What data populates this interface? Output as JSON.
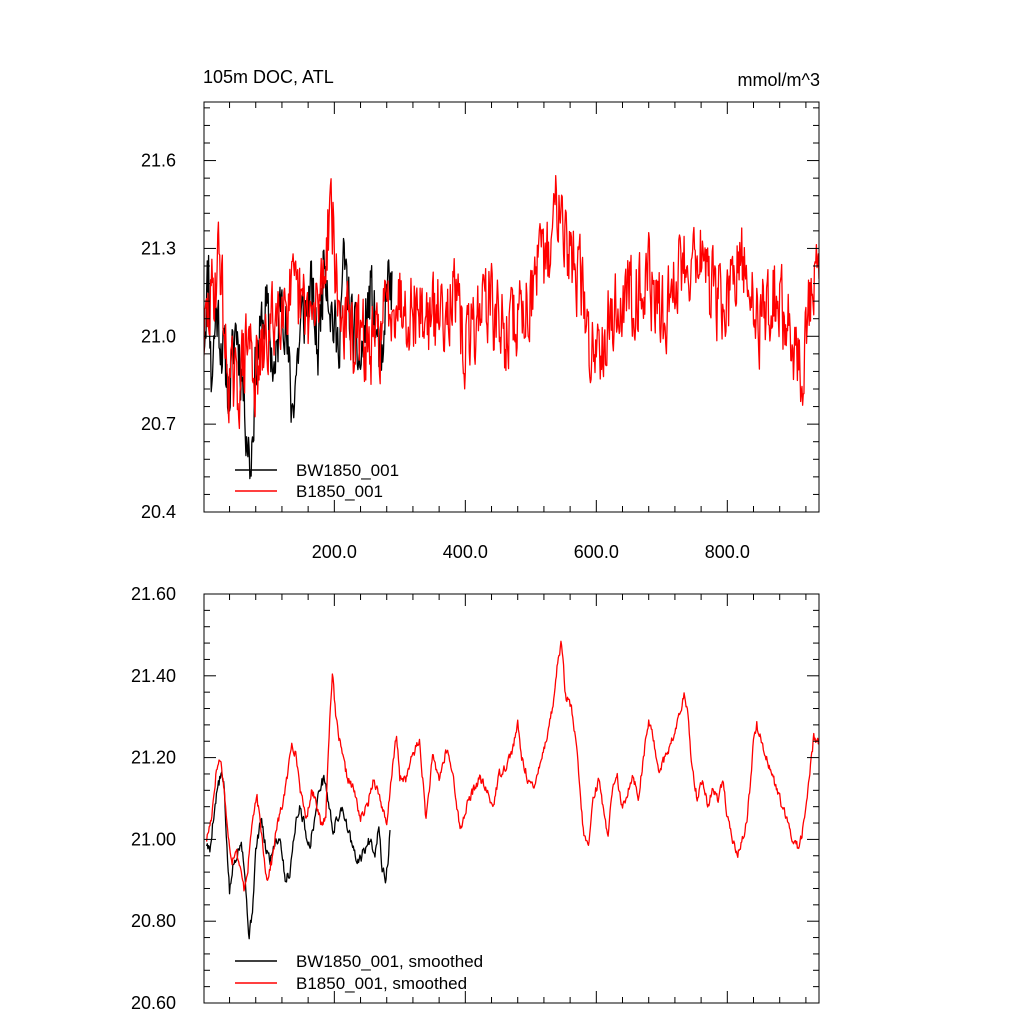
{
  "chart_data": [
    {
      "type": "line",
      "title_left": "105m DOC, ATL",
      "title_right": "mmol/m^3",
      "xlim": [
        1,
        940
      ],
      "ylim": [
        20.4,
        21.8
      ],
      "x_ticks": [
        200,
        400,
        600,
        800
      ],
      "x_tick_labels": [
        "200.0",
        "400.0",
        "600.0",
        "800.0"
      ],
      "y_ticks": [
        20.4,
        20.7,
        21.0,
        21.3,
        21.6
      ],
      "y_tick_labels": [
        "20.4",
        "20.7",
        "21.0",
        "21.3",
        "21.6"
      ],
      "legend_location": "lower-left",
      "series": [
        {
          "name": "BW1850_001",
          "color": "#000000",
          "x_start": 1,
          "x_end": 288,
          "anchors": [
            [
              1,
              21.0
            ],
            [
              8,
              21.25
            ],
            [
              12,
              20.85
            ],
            [
              20,
              21.1
            ],
            [
              30,
              20.95
            ],
            [
              40,
              20.8
            ],
            [
              50,
              21.05
            ],
            [
              60,
              20.85
            ],
            [
              72,
              20.55
            ],
            [
              80,
              20.9
            ],
            [
              95,
              21.1
            ],
            [
              110,
              20.85
            ],
            [
              120,
              21.2
            ],
            [
              135,
              20.75
            ],
            [
              150,
              21.05
            ],
            [
              165,
              21.15
            ],
            [
              175,
              20.95
            ],
            [
              185,
              21.3
            ],
            [
              195,
              21.1
            ],
            [
              205,
              20.95
            ],
            [
              215,
              21.25
            ],
            [
              225,
              21.05
            ],
            [
              240,
              20.9
            ],
            [
              255,
              21.15
            ],
            [
              265,
              21.0
            ],
            [
              275,
              20.85
            ],
            [
              280,
              21.2
            ],
            [
              288,
              21.15
            ]
          ],
          "noise": 0.11,
          "seed": 11
        },
        {
          "name": "B1850_001",
          "color": "#ff0000",
          "x_start": 1,
          "x_end": 940,
          "anchors": [
            [
              1,
              21.0
            ],
            [
              15,
              21.15
            ],
            [
              25,
              21.3
            ],
            [
              35,
              20.9
            ],
            [
              50,
              20.8
            ],
            [
              70,
              21.0
            ],
            [
              80,
              20.85
            ],
            [
              100,
              21.0
            ],
            [
              120,
              21.15
            ],
            [
              150,
              21.1
            ],
            [
              170,
              21.05
            ],
            [
              185,
              21.25
            ],
            [
              195,
              21.5
            ],
            [
              205,
              21.1
            ],
            [
              230,
              21.0
            ],
            [
              260,
              20.95
            ],
            [
              290,
              21.15
            ],
            [
              320,
              21.1
            ],
            [
              350,
              21.05
            ],
            [
              380,
              21.15
            ],
            [
              400,
              20.95
            ],
            [
              430,
              21.15
            ],
            [
              460,
              21.0
            ],
            [
              490,
              21.1
            ],
            [
              510,
              21.2
            ],
            [
              530,
              21.3
            ],
            [
              545,
              21.55
            ],
            [
              555,
              21.3
            ],
            [
              575,
              21.2
            ],
            [
              590,
              20.95
            ],
            [
              620,
              21.05
            ],
            [
              650,
              21.15
            ],
            [
              680,
              21.2
            ],
            [
              700,
              21.05
            ],
            [
              730,
              21.25
            ],
            [
              760,
              21.3
            ],
            [
              775,
              21.15
            ],
            [
              800,
              21.1
            ],
            [
              820,
              21.25
            ],
            [
              850,
              21.05
            ],
            [
              870,
              21.15
            ],
            [
              900,
              21.0
            ],
            [
              915,
              20.85
            ],
            [
              925,
              21.1
            ],
            [
              935,
              21.2
            ],
            [
              940,
              21.15
            ]
          ],
          "noise": 0.13,
          "seed": 29
        }
      ]
    },
    {
      "type": "line",
      "xlim": [
        1,
        940
      ],
      "ylim": [
        20.6,
        21.6
      ],
      "x_ticks": [
        200,
        400,
        600,
        800
      ],
      "y_ticks": [
        20.6,
        20.8,
        21.0,
        21.2,
        21.4,
        21.6
      ],
      "y_tick_labels": [
        "20.60",
        "20.80",
        "21.00",
        "21.20",
        "21.40",
        "21.60"
      ],
      "legend_location": "lower-left",
      "series": [
        {
          "name": "BW1850_001, smoothed",
          "color": "#000000",
          "x_start": 5,
          "x_end": 285,
          "anchors": [
            [
              5,
              20.99
            ],
            [
              10,
              20.97
            ],
            [
              15,
              21.05
            ],
            [
              22,
              21.13
            ],
            [
              28,
              21.16
            ],
            [
              32,
              21.12
            ],
            [
              36,
              20.98
            ],
            [
              40,
              20.87
            ],
            [
              45,
              20.93
            ],
            [
              52,
              20.97
            ],
            [
              58,
              21.0
            ],
            [
              62,
              20.94
            ],
            [
              66,
              20.85
            ],
            [
              70,
              20.76
            ],
            [
              75,
              20.83
            ],
            [
              80,
              20.97
            ],
            [
              88,
              21.05
            ],
            [
              95,
              20.98
            ],
            [
              102,
              20.95
            ],
            [
              110,
              21.0
            ],
            [
              118,
              21.0
            ],
            [
              125,
              20.9
            ],
            [
              132,
              20.92
            ],
            [
              140,
              21.03
            ],
            [
              148,
              21.08
            ],
            [
              155,
              21.03
            ],
            [
              162,
              20.98
            ],
            [
              170,
              21.05
            ],
            [
              178,
              21.13
            ],
            [
              185,
              21.15
            ],
            [
              192,
              21.08
            ],
            [
              198,
              21.02
            ],
            [
              205,
              21.05
            ],
            [
              212,
              21.08
            ],
            [
              220,
              21.03
            ],
            [
              228,
              20.98
            ],
            [
              235,
              20.94
            ],
            [
              245,
              20.97
            ],
            [
              255,
              21.0
            ],
            [
              262,
              20.97
            ],
            [
              268,
              21.03
            ],
            [
              273,
              20.93
            ],
            [
              278,
              20.9
            ],
            [
              282,
              20.95
            ],
            [
              285,
              21.02
            ]
          ],
          "noise": 0.012,
          "seed": 5
        },
        {
          "name": "B1850_001, smoothed",
          "color": "#ff0000",
          "x_start": 5,
          "x_end": 940,
          "anchors": [
            [
              5,
              21.0
            ],
            [
              12,
              21.05
            ],
            [
              20,
              21.17
            ],
            [
              26,
              21.2
            ],
            [
              32,
              21.12
            ],
            [
              38,
              21.0
            ],
            [
              44,
              20.95
            ],
            [
              50,
              20.98
            ],
            [
              56,
              20.93
            ],
            [
              62,
              20.88
            ],
            [
              68,
              20.93
            ],
            [
              75,
              21.05
            ],
            [
              82,
              21.1
            ],
            [
              90,
              21.0
            ],
            [
              97,
              20.9
            ],
            [
              105,
              20.95
            ],
            [
              112,
              21.03
            ],
            [
              120,
              21.08
            ],
            [
              128,
              21.15
            ],
            [
              135,
              21.24
            ],
            [
              142,
              21.2
            ],
            [
              150,
              21.1
            ],
            [
              158,
              21.05
            ],
            [
              165,
              21.12
            ],
            [
              172,
              21.1
            ],
            [
              180,
              21.03
            ],
            [
              187,
              21.06
            ],
            [
              193,
              21.3
            ],
            [
              197,
              21.41
            ],
            [
              202,
              21.3
            ],
            [
              210,
              21.22
            ],
            [
              220,
              21.15
            ],
            [
              230,
              21.12
            ],
            [
              240,
              21.05
            ],
            [
              250,
              21.08
            ],
            [
              260,
              21.15
            ],
            [
              270,
              21.1
            ],
            [
              280,
              21.03
            ],
            [
              290,
              21.2
            ],
            [
              295,
              21.25
            ],
            [
              300,
              21.15
            ],
            [
              310,
              21.15
            ],
            [
              320,
              21.21
            ],
            [
              330,
              21.24
            ],
            [
              340,
              21.05
            ],
            [
              350,
              21.2
            ],
            [
              360,
              21.15
            ],
            [
              372,
              21.22
            ],
            [
              382,
              21.15
            ],
            [
              392,
              21.02
            ],
            [
              402,
              21.08
            ],
            [
              412,
              21.12
            ],
            [
              422,
              21.15
            ],
            [
              432,
              21.12
            ],
            [
              442,
              21.08
            ],
            [
              452,
              21.16
            ],
            [
              462,
              21.18
            ],
            [
              472,
              21.22
            ],
            [
              480,
              21.28
            ],
            [
              486,
              21.2
            ],
            [
              495,
              21.15
            ],
            [
              505,
              21.12
            ],
            [
              512,
              21.18
            ],
            [
              520,
              21.22
            ],
            [
              528,
              21.28
            ],
            [
              535,
              21.34
            ],
            [
              542,
              21.45
            ],
            [
              547,
              21.48
            ],
            [
              553,
              21.35
            ],
            [
              562,
              21.32
            ],
            [
              570,
              21.22
            ],
            [
              580,
              21.02
            ],
            [
              588,
              20.98
            ],
            [
              595,
              21.1
            ],
            [
              605,
              21.15
            ],
            [
              612,
              21.05
            ],
            [
              618,
              21.02
            ],
            [
              625,
              21.12
            ],
            [
              632,
              21.15
            ],
            [
              640,
              21.07
            ],
            [
              648,
              21.12
            ],
            [
              656,
              21.16
            ],
            [
              664,
              21.1
            ],
            [
              672,
              21.2
            ],
            [
              680,
              21.29
            ],
            [
              688,
              21.24
            ],
            [
              695,
              21.17
            ],
            [
              702,
              21.19
            ],
            [
              710,
              21.22
            ],
            [
              718,
              21.25
            ],
            [
              726,
              21.3
            ],
            [
              734,
              21.35
            ],
            [
              740,
              21.3
            ],
            [
              746,
              21.18
            ],
            [
              754,
              21.1
            ],
            [
              762,
              21.15
            ],
            [
              770,
              21.08
            ],
            [
              778,
              21.12
            ],
            [
              786,
              21.1
            ],
            [
              793,
              21.15
            ],
            [
              800,
              21.05
            ],
            [
              808,
              21.0
            ],
            [
              815,
              20.96
            ],
            [
              822,
              20.99
            ],
            [
              830,
              21.05
            ],
            [
              836,
              21.15
            ],
            [
              840,
              21.25
            ],
            [
              845,
              21.28
            ],
            [
              850,
              21.25
            ],
            [
              860,
              21.2
            ],
            [
              870,
              21.15
            ],
            [
              880,
              21.1
            ],
            [
              890,
              21.05
            ],
            [
              900,
              21.0
            ],
            [
              910,
              20.98
            ],
            [
              918,
              21.05
            ],
            [
              925,
              21.15
            ],
            [
              932,
              21.25
            ],
            [
              940,
              21.24
            ]
          ],
          "noise": 0.01,
          "seed": 17
        }
      ]
    }
  ]
}
